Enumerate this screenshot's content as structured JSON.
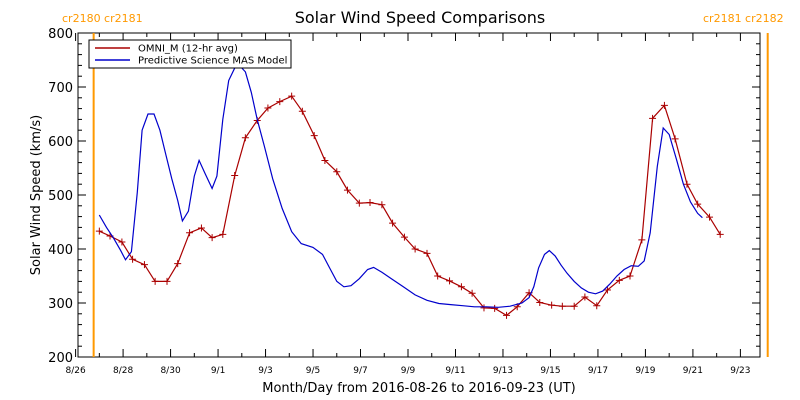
{
  "chart_data": {
    "type": "line",
    "title": "Solar Wind Speed Comparisons",
    "xlabel": "Month/Day from 2016-08-26 to 2016-09-23 (UT)",
    "ylabel": "Solar Wind Speed (km/s)",
    "xlim": [
      0,
      28
    ],
    "ylim": [
      200,
      800
    ],
    "x_tick_labels": [
      {
        "x": 0,
        "label": "8/26"
      },
      {
        "x": 2,
        "label": "8/28"
      },
      {
        "x": 4,
        "label": "8/30"
      },
      {
        "x": 6,
        "label": "9/1"
      },
      {
        "x": 8,
        "label": "9/3"
      },
      {
        "x": 10,
        "label": "9/5"
      },
      {
        "x": 12,
        "label": "9/7"
      },
      {
        "x": 14,
        "label": "9/9"
      },
      {
        "x": 16,
        "label": "9/11"
      },
      {
        "x": 18,
        "label": "9/13"
      },
      {
        "x": 20,
        "label": "9/15"
      },
      {
        "x": 22,
        "label": "9/17"
      },
      {
        "x": 24,
        "label": "9/19"
      },
      {
        "x": 26,
        "label": "9/21"
      },
      {
        "x": 28,
        "label": "9/23"
      }
    ],
    "y_ticks": [
      200,
      300,
      400,
      500,
      600,
      700,
      800
    ],
    "legend_position": "top-left",
    "carrington_markers": [
      {
        "x": 0.76,
        "label": "cr2180 cr2181",
        "color": "#ff9900"
      },
      {
        "x": 29.15,
        "label": "cr2181 cr2182",
        "color": "#ff9900"
      }
    ],
    "series": [
      {
        "name": "OMNI_M (12-hr avg)",
        "color": "#aa0000",
        "marker": "+",
        "points": [
          [
            1.0,
            433
          ],
          [
            1.45,
            424
          ],
          [
            1.95,
            413
          ],
          [
            2.4,
            381
          ],
          [
            2.9,
            371
          ],
          [
            3.35,
            340
          ],
          [
            3.85,
            340
          ],
          [
            4.3,
            373
          ],
          [
            4.8,
            430
          ],
          [
            5.3,
            439
          ],
          [
            5.75,
            421
          ],
          [
            6.2,
            427
          ],
          [
            6.7,
            536
          ],
          [
            7.15,
            606
          ],
          [
            7.65,
            638
          ],
          [
            8.1,
            661
          ],
          [
            8.6,
            673
          ],
          [
            9.1,
            683
          ],
          [
            9.55,
            655
          ],
          [
            10.05,
            610
          ],
          [
            10.5,
            564
          ],
          [
            11.0,
            543
          ],
          [
            11.45,
            509
          ],
          [
            11.95,
            485
          ],
          [
            12.4,
            486
          ],
          [
            12.9,
            482
          ],
          [
            13.35,
            448
          ],
          [
            13.85,
            422
          ],
          [
            14.3,
            400
          ],
          [
            14.8,
            392
          ],
          [
            15.25,
            350
          ],
          [
            15.75,
            341
          ],
          [
            16.25,
            330
          ],
          [
            16.7,
            318
          ],
          [
            17.2,
            291
          ],
          [
            17.65,
            290
          ],
          [
            18.15,
            277
          ],
          [
            18.6,
            293
          ],
          [
            19.1,
            319
          ],
          [
            19.55,
            301
          ],
          [
            20.05,
            296
          ],
          [
            20.5,
            294
          ],
          [
            21.0,
            294
          ],
          [
            21.45,
            311
          ],
          [
            21.95,
            295
          ],
          [
            22.4,
            324
          ],
          [
            22.9,
            342
          ],
          [
            23.35,
            350
          ],
          [
            23.85,
            417
          ],
          [
            24.3,
            642
          ],
          [
            24.8,
            666
          ],
          [
            25.25,
            604
          ],
          [
            25.75,
            520
          ],
          [
            26.2,
            483
          ],
          [
            26.7,
            459
          ],
          [
            27.15,
            427
          ]
        ]
      },
      {
        "name": "Predictive Science MAS Model",
        "color": "#0000cc",
        "marker": "",
        "points": [
          [
            1.0,
            463
          ],
          [
            1.3,
            440
          ],
          [
            1.6,
            420
          ],
          [
            1.9,
            397
          ],
          [
            2.1,
            380
          ],
          [
            2.35,
            395
          ],
          [
            2.6,
            505
          ],
          [
            2.8,
            620
          ],
          [
            3.05,
            650
          ],
          [
            3.3,
            650
          ],
          [
            3.55,
            620
          ],
          [
            3.8,
            575
          ],
          [
            4.05,
            530
          ],
          [
            4.3,
            490
          ],
          [
            4.5,
            452
          ],
          [
            4.75,
            470
          ],
          [
            5.0,
            535
          ],
          [
            5.2,
            564
          ],
          [
            5.45,
            540
          ],
          [
            5.75,
            512
          ],
          [
            5.95,
            535
          ],
          [
            6.2,
            640
          ],
          [
            6.45,
            712
          ],
          [
            6.7,
            735
          ],
          [
            6.9,
            740
          ],
          [
            7.15,
            728
          ],
          [
            7.4,
            690
          ],
          [
            7.65,
            640
          ],
          [
            7.95,
            590
          ],
          [
            8.3,
            530
          ],
          [
            8.7,
            475
          ],
          [
            9.1,
            432
          ],
          [
            9.5,
            410
          ],
          [
            10.0,
            403
          ],
          [
            10.4,
            390
          ],
          [
            10.7,
            365
          ],
          [
            11.0,
            340
          ],
          [
            11.3,
            330
          ],
          [
            11.6,
            332
          ],
          [
            11.95,
            345
          ],
          [
            12.3,
            362
          ],
          [
            12.55,
            366
          ],
          [
            12.9,
            357
          ],
          [
            13.3,
            345
          ],
          [
            13.8,
            330
          ],
          [
            14.3,
            315
          ],
          [
            14.8,
            305
          ],
          [
            15.3,
            299
          ],
          [
            15.8,
            297
          ],
          [
            16.3,
            295
          ],
          [
            16.8,
            293
          ],
          [
            17.3,
            293
          ],
          [
            17.8,
            292
          ],
          [
            18.3,
            294
          ],
          [
            18.8,
            300
          ],
          [
            19.1,
            310
          ],
          [
            19.3,
            330
          ],
          [
            19.5,
            365
          ],
          [
            19.75,
            390
          ],
          [
            19.95,
            397
          ],
          [
            20.2,
            387
          ],
          [
            20.45,
            370
          ],
          [
            20.7,
            355
          ],
          [
            21.0,
            340
          ],
          [
            21.3,
            328
          ],
          [
            21.6,
            320
          ],
          [
            21.9,
            317
          ],
          [
            22.2,
            322
          ],
          [
            22.5,
            335
          ],
          [
            22.8,
            350
          ],
          [
            23.1,
            362
          ],
          [
            23.4,
            369
          ],
          [
            23.7,
            368
          ],
          [
            23.95,
            378
          ],
          [
            24.2,
            430
          ],
          [
            24.5,
            553
          ],
          [
            24.75,
            624
          ],
          [
            25.0,
            612
          ],
          [
            25.3,
            567
          ],
          [
            25.6,
            520
          ],
          [
            25.9,
            487
          ],
          [
            26.2,
            466
          ],
          [
            26.4,
            458
          ]
        ]
      }
    ]
  }
}
